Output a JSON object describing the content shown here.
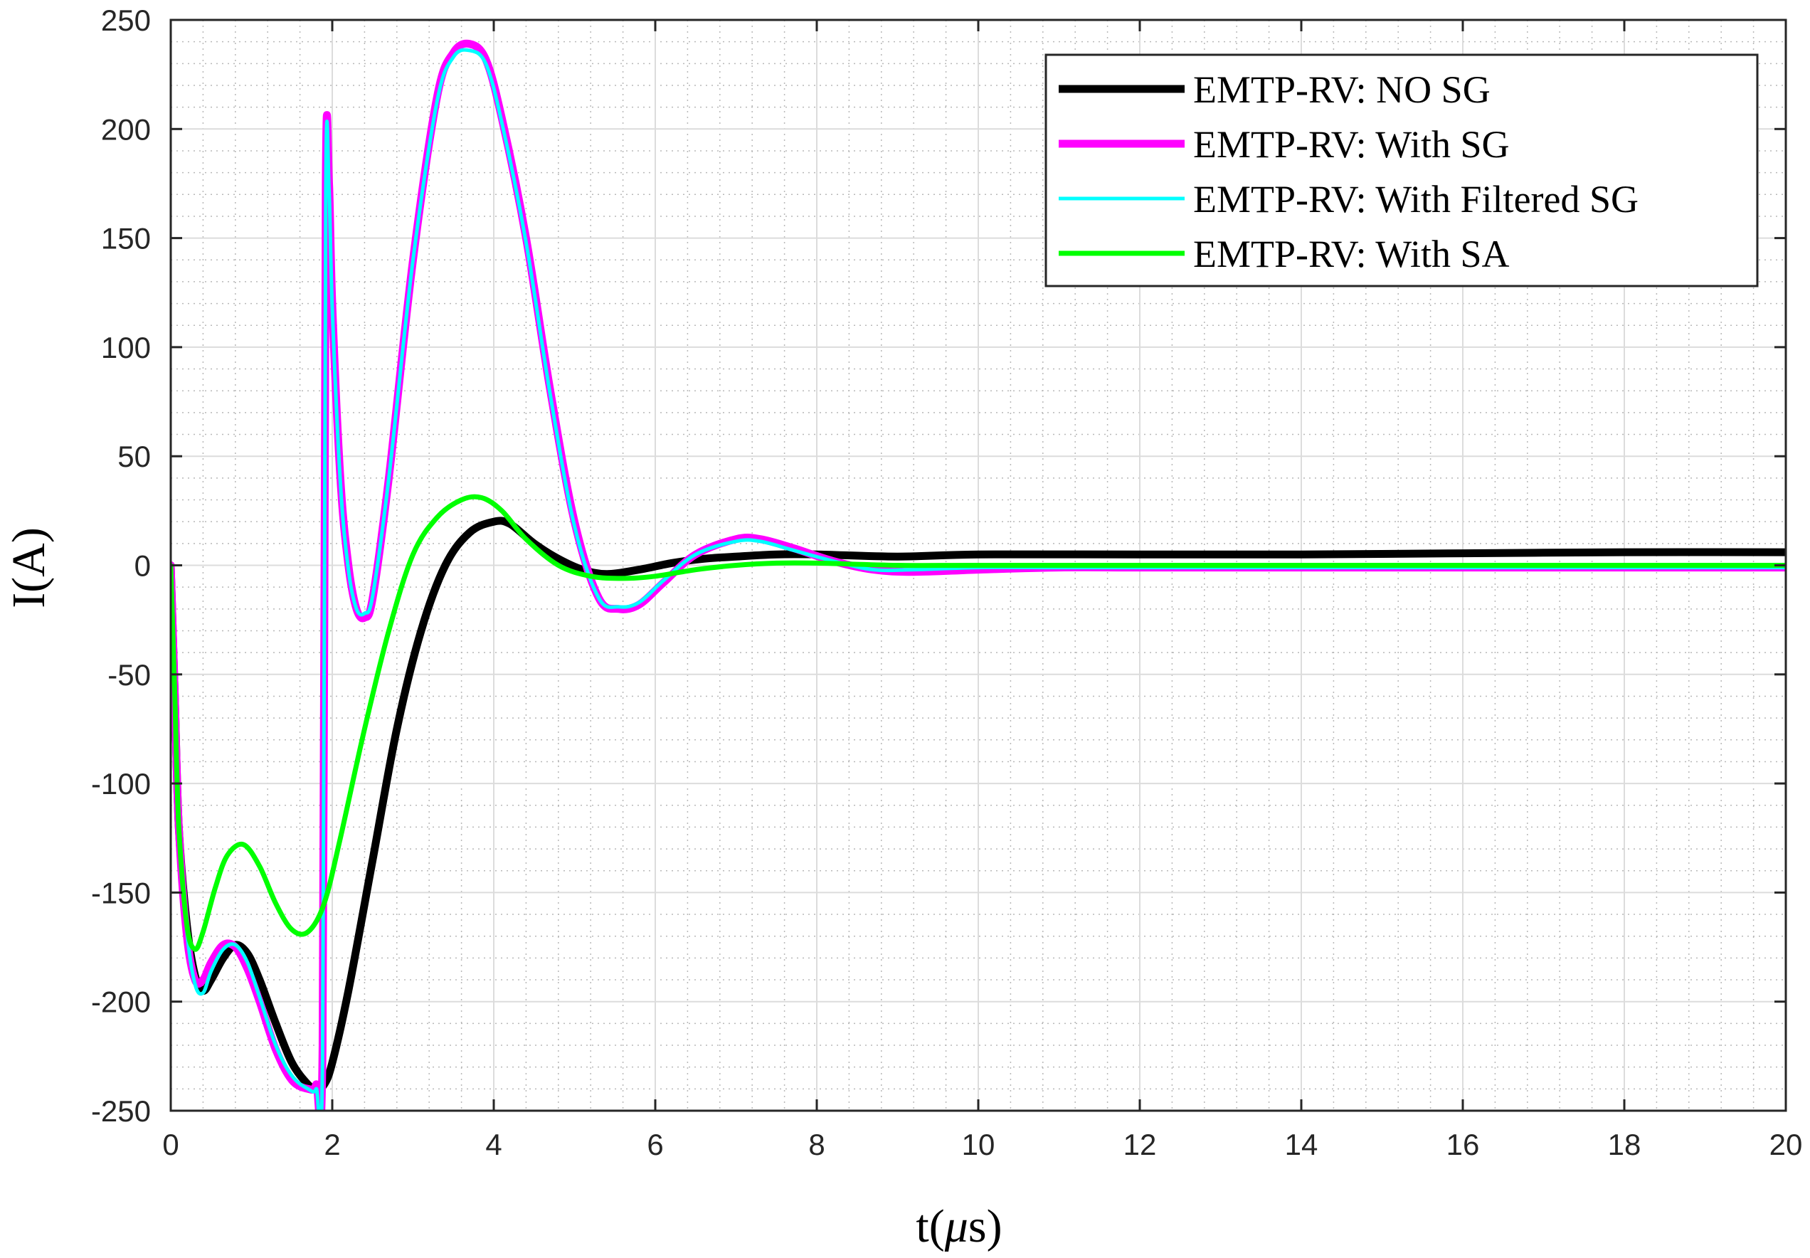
{
  "chart_data": {
    "type": "line",
    "title": "",
    "xlabel": "t(μs)",
    "xlabel_prefix": "t(",
    "xlabel_symbol": "μ",
    "xlabel_suffix": "s)",
    "ylabel": "I(A)",
    "xlim": [
      0,
      20
    ],
    "ylim": [
      -250,
      250
    ],
    "xticks": [
      0,
      2,
      4,
      6,
      8,
      10,
      12,
      14,
      16,
      18,
      20
    ],
    "yticks": [
      -250,
      -200,
      -150,
      -100,
      -50,
      0,
      50,
      100,
      150,
      200,
      250
    ],
    "grid": true,
    "minor_grid": true,
    "legend_position": "top-right",
    "series": [
      {
        "name": "EMTP-RV: NO SG",
        "color": "#000000",
        "width": 11,
        "x": [
          0,
          0.05,
          0.1,
          0.2,
          0.3,
          0.4,
          0.5,
          0.65,
          0.8,
          0.95,
          1.1,
          1.3,
          1.5,
          1.7,
          1.8,
          1.9,
          2.0,
          2.2,
          2.5,
          2.8,
          3.1,
          3.4,
          3.7,
          4.0,
          4.2,
          4.5,
          4.8,
          5.1,
          5.4,
          5.8,
          6.2,
          6.6,
          7.0,
          7.5,
          8.0,
          9.0,
          10.0,
          12.0,
          14.0,
          16.0,
          18.0,
          20.0
        ],
        "y": [
          0,
          -60,
          -120,
          -165,
          -188,
          -195,
          -190,
          -180,
          -174,
          -178,
          -190,
          -210,
          -228,
          -238,
          -240,
          -238,
          -228,
          -195,
          -135,
          -75,
          -30,
          0,
          15,
          20,
          19,
          10,
          3,
          -2,
          -4,
          -2,
          1,
          3,
          4,
          5,
          5,
          4,
          5,
          5,
          5,
          5.5,
          6,
          6
        ]
      },
      {
        "name": "EMTP-RV: With SG",
        "color": "#ff00ff",
        "width": 11,
        "x": [
          0,
          0.05,
          0.1,
          0.2,
          0.3,
          0.4,
          0.5,
          0.65,
          0.8,
          0.95,
          1.1,
          1.3,
          1.5,
          1.7,
          1.8,
          1.88,
          1.92,
          1.96,
          2.0,
          2.1,
          2.2,
          2.3,
          2.4,
          2.5,
          2.7,
          3.0,
          3.3,
          3.5,
          3.7,
          3.9,
          4.1,
          4.4,
          4.7,
          5.0,
          5.3,
          5.55,
          5.8,
          6.1,
          6.5,
          7.0,
          7.3,
          7.7,
          8.2,
          8.7,
          9.2,
          10.0,
          11.0,
          12.0,
          14.0,
          16.0,
          18.0,
          20.0
        ],
        "y": [
          0,
          -60,
          -120,
          -170,
          -190,
          -190,
          -182,
          -174,
          -175,
          -185,
          -200,
          -222,
          -236,
          -240,
          -238,
          -220,
          175,
          175,
          120,
          40,
          0,
          -20,
          -24,
          -15,
          40,
          140,
          215,
          235,
          239,
          232,
          205,
          150,
          80,
          20,
          -15,
          -20,
          -18,
          -8,
          5,
          12,
          12,
          8,
          2,
          -2,
          -3,
          -2,
          -1,
          -1,
          -1,
          -1,
          -1,
          -1
        ]
      },
      {
        "name": "EMTP-RV: With Filtered SG",
        "color": "#00ffff",
        "width": 5,
        "x": [
          0,
          0.05,
          0.1,
          0.2,
          0.3,
          0.4,
          0.5,
          0.65,
          0.8,
          0.95,
          1.1,
          1.3,
          1.5,
          1.7,
          1.8,
          1.88,
          1.92,
          1.96,
          2.0,
          2.1,
          2.2,
          2.3,
          2.4,
          2.5,
          2.7,
          3.0,
          3.3,
          3.5,
          3.7,
          3.9,
          4.1,
          4.4,
          4.7,
          5.0,
          5.3,
          5.55,
          5.8,
          6.1,
          6.5,
          7.0,
          7.3,
          7.7,
          8.2,
          8.7,
          9.2,
          10.0,
          11.0,
          12.0,
          14.0,
          16.0,
          18.0,
          20.0
        ],
        "y": [
          0,
          -58,
          -118,
          -168,
          -192,
          -196,
          -186,
          -176,
          -174,
          -182,
          -198,
          -220,
          -234,
          -240,
          -240,
          -225,
          172,
          172,
          118,
          38,
          -2,
          -20,
          -22,
          -14,
          40,
          140,
          213,
          233,
          236,
          230,
          203,
          148,
          78,
          18,
          -15,
          -19,
          -17,
          -7,
          5,
          11,
          11,
          7,
          2,
          -2,
          -2,
          -1,
          -1,
          -1,
          -1,
          -1,
          -1,
          -1
        ]
      },
      {
        "name": "EMTP-RV: With SA",
        "color": "#00ff00",
        "width": 7,
        "x": [
          0,
          0.05,
          0.1,
          0.2,
          0.3,
          0.4,
          0.55,
          0.7,
          0.9,
          1.1,
          1.3,
          1.5,
          1.7,
          1.9,
          2.1,
          2.4,
          2.7,
          3.0,
          3.3,
          3.6,
          3.85,
          4.1,
          4.4,
          4.8,
          5.2,
          5.6,
          6.0,
          6.5,
          7.0,
          7.5,
          8.0,
          9.0,
          10.0,
          12.0,
          14.0,
          16.0,
          18.0,
          20.0
        ],
        "y": [
          0,
          -60,
          -120,
          -165,
          -176,
          -168,
          -148,
          -133,
          -128,
          -138,
          -155,
          -167,
          -168,
          -155,
          -125,
          -75,
          -30,
          5,
          22,
          30,
          31,
          25,
          12,
          0,
          -5,
          -6,
          -5,
          -2,
          0,
          1,
          1,
          0,
          0,
          0,
          0,
          0,
          0,
          0
        ]
      }
    ]
  }
}
